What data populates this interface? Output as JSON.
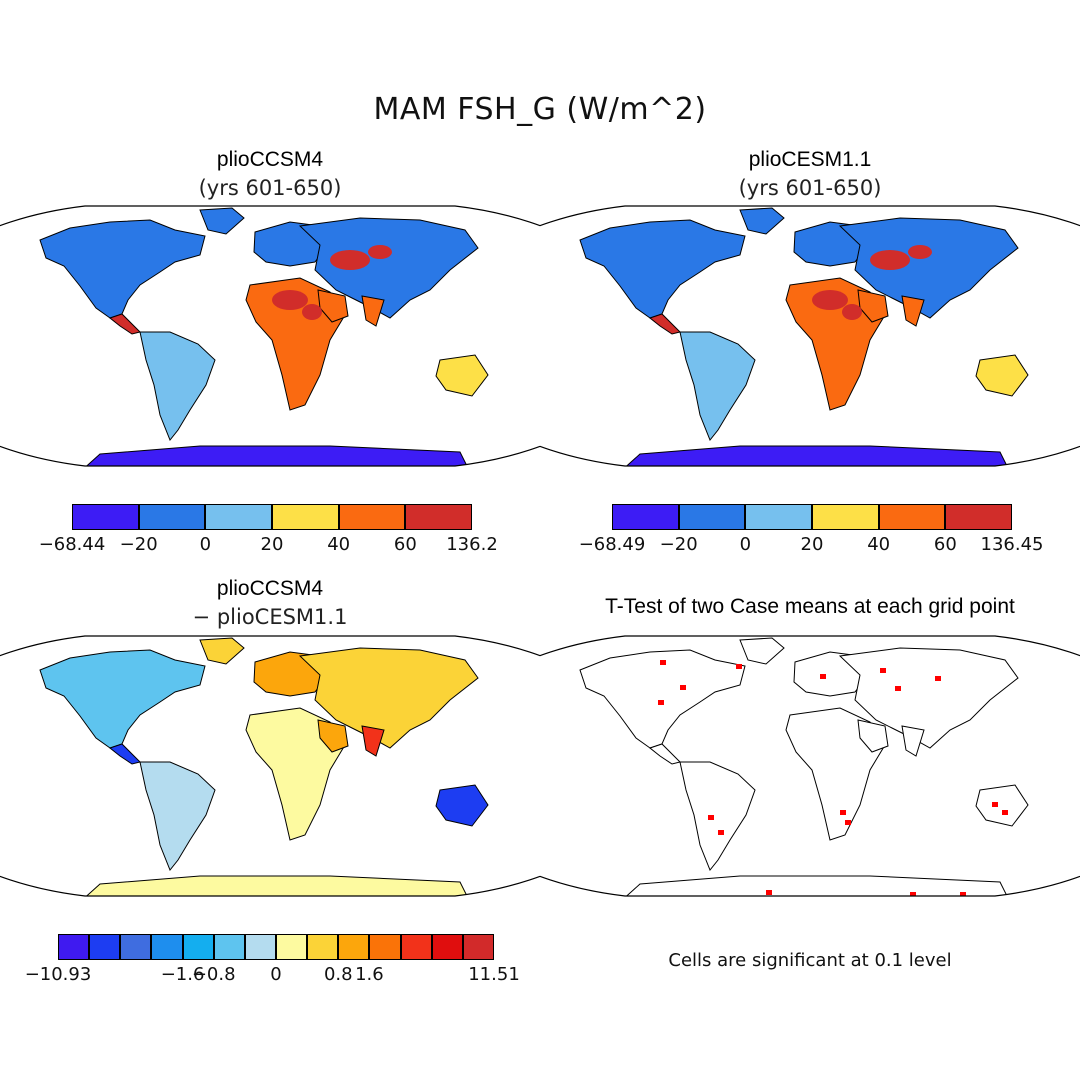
{
  "title": "MAM FSH_G (W/m^2)",
  "colors": {
    "c1": "#3d1cf5",
    "c2": "#2a78e6",
    "c3": "#76c0ee",
    "c4": "#fde047",
    "c5": "#fa6a11",
    "c6": "#d12d2a",
    "sig": "#ff0000",
    "land_white": "#ffffff",
    "coast": "#000000"
  },
  "panels": [
    {
      "title": "plioCCSM4",
      "subtitle": "(yrs 601-650)",
      "colorbar": {
        "colors": [
          "#3d1cf5",
          "#2a78e6",
          "#76c0ee",
          "#fde047",
          "#fa6a11",
          "#d12d2a"
        ],
        "labels": [
          "−68.44",
          "−20",
          "0",
          "20",
          "40",
          "60",
          "136.2"
        ]
      }
    },
    {
      "title": "plioCESM1.1",
      "subtitle": "(yrs 601-650)",
      "colorbar": {
        "colors": [
          "#3d1cf5",
          "#2a78e6",
          "#76c0ee",
          "#fde047",
          "#fa6a11",
          "#d12d2a"
        ],
        "labels": [
          "−68.49",
          "−20",
          "0",
          "20",
          "40",
          "60",
          "136.45"
        ]
      }
    },
    {
      "title": "plioCCSM4",
      "subtitle": "− plioCESM1.1",
      "colorbar": {
        "colors": [
          "#3f1af0",
          "#1d3df2",
          "#3f6de0",
          "#1e8eee",
          "#14aeef",
          "#5ec4ef",
          "#b4dcef",
          "#fdfaa0",
          "#fbd337",
          "#fca60c",
          "#fa7308",
          "#f2321a",
          "#e00e0e",
          "#d22a2a"
        ],
        "labels": [
          "−10.93",
          "−1.6",
          "−0.8",
          "0",
          "0.8",
          "1.6",
          "11.51"
        ],
        "label_bins": [
          0,
          4,
          5,
          7,
          9,
          10,
          14
        ]
      }
    },
    {
      "title": "T-Test of two Case means at each grid point",
      "footnote": "Cells are significant at 0.1 level"
    }
  ]
}
